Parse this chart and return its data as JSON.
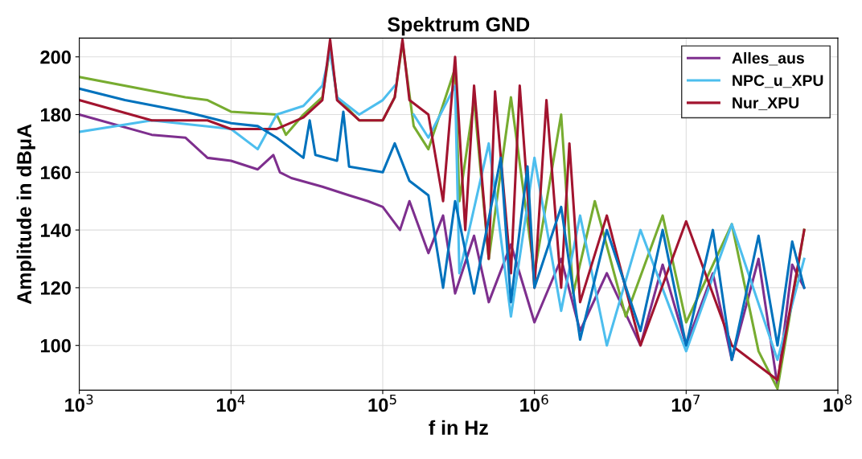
{
  "chart_data": {
    "type": "line",
    "title": "Spektrum GND",
    "xlabel": "f in Hz",
    "ylabel": "Amplitude in dBμA",
    "log": "x",
    "grid": true,
    "legend": "top right",
    "line_style": "solid",
    "marker": "none",
    "xlim": [
      1000,
      100000000
    ],
    "ylim": [
      84.5,
      206.5
    ],
    "xticks": [
      {
        "value": 1000,
        "label": "10$^{3}$"
      },
      {
        "value": 10000,
        "label": "10$^{4}$"
      },
      {
        "value": 100000,
        "label": "10$^{5}$"
      },
      {
        "value": 1000000,
        "label": "10$^{6}$"
      },
      {
        "value": 10000000,
        "label": "10$^{7}$"
      },
      {
        "value": 100000000,
        "label": "10$^{8}$"
      }
    ],
    "yticks": [
      100,
      120,
      140,
      160,
      180,
      200
    ],
    "series": [
      {
        "name": "Alles_aus",
        "color": "#7e2f8e",
        "x": [
          1000,
          3000,
          5000,
          7000,
          10000,
          15000,
          19000,
          21000,
          25000,
          40000,
          60000,
          80000,
          100000,
          130000,
          150000,
          200000,
          250000,
          300000,
          400000,
          500000,
          700000,
          1000000,
          1500000,
          2000000,
          3000000,
          5000000,
          7000000,
          10000000,
          15000000,
          20000000,
          30000000,
          40000000,
          50000000,
          60000000
        ],
        "values": [
          180,
          173,
          172,
          165,
          164,
          161,
          166,
          160,
          158,
          155,
          152,
          150,
          148,
          140,
          150,
          132,
          145,
          118,
          138,
          115,
          135,
          108,
          130,
          105,
          125,
          100,
          128,
          100,
          125,
          95,
          130,
          86,
          128,
          120
        ]
      },
      {
        "color": "#77ac30",
        "x": [
          1000,
          5000,
          7000,
          10000,
          20000,
          23000,
          30000,
          40000,
          45000,
          50000,
          70000,
          100000,
          120000,
          135000,
          160000,
          200000,
          300000,
          320000,
          400000,
          500000,
          700000,
          1000000,
          1500000,
          1800000,
          2500000,
          4000000,
          7000000,
          10000000,
          20000000,
          30000000,
          40000000,
          60000000
        ],
        "values": [
          193,
          186,
          185,
          181,
          180,
          173,
          180,
          186,
          203,
          186,
          178,
          178,
          186,
          205,
          176,
          168,
          196,
          150,
          185,
          130,
          186,
          125,
          180,
          118,
          150,
          110,
          145,
          108,
          142,
          98,
          85,
          140
        ]
      },
      {
        "name": "NPC_u_XPU",
        "color": "#4dbeee",
        "x": [
          1000,
          3000,
          10000,
          15000,
          20000,
          30000,
          40000,
          45000,
          50000,
          70000,
          100000,
          120000,
          135000,
          160000,
          200000,
          300000,
          320000,
          500000,
          700000,
          1000000,
          1500000,
          2000000,
          3000000,
          5000000,
          10000000,
          20000000,
          40000000,
          60000000
        ],
        "values": [
          174,
          178,
          175,
          168,
          180,
          183,
          190,
          202,
          186,
          180,
          185,
          190,
          null,
          180,
          172,
          190,
          125,
          170,
          110,
          165,
          112,
          145,
          100,
          140,
          98,
          142,
          95,
          130
        ]
      },
      {
        "name": "Nur_XPU",
        "color": "#a2142f",
        "x": [
          1000,
          3000,
          7000,
          10000,
          20000,
          30000,
          40000,
          45000,
          50000,
          70000,
          100000,
          120000,
          135000,
          150000,
          200000,
          250000,
          300000,
          350000,
          400000,
          500000,
          550000,
          700000,
          800000,
          1000000,
          1200000,
          1500000,
          1700000,
          2000000,
          3000000,
          5000000,
          10000000,
          20000000,
          40000000,
          60000000
        ],
        "values": [
          185,
          178,
          178,
          175,
          175,
          179,
          185,
          206,
          185,
          178,
          178,
          186,
          206,
          185,
          180,
          150,
          200,
          140,
          190,
          130,
          188,
          125,
          190,
          120,
          185,
          120,
          170,
          115,
          145,
          100,
          143,
          100,
          88,
          140
        ]
      },
      {
        "color": "#0072bd",
        "x": [
          1000,
          2000,
          5000,
          10000,
          15000,
          20000,
          30000,
          33000,
          36000,
          50000,
          55000,
          60000,
          100000,
          120000,
          150000,
          200000,
          250000,
          300000,
          400000,
          600000,
          700000,
          900000,
          1000000,
          1500000,
          2000000,
          3000000,
          5000000,
          7000000,
          10000000,
          15000000,
          20000000,
          30000000,
          40000000,
          50000000,
          60000000
        ],
        "values": [
          189,
          185,
          181,
          177,
          176,
          172,
          165,
          178,
          166,
          164,
          181,
          162,
          160,
          170,
          157,
          152,
          120,
          150,
          118,
          165,
          115,
          162,
          120,
          148,
          102,
          140,
          105,
          140,
          100,
          140,
          95,
          138,
          100,
          136,
          120
        ]
      }
    ]
  }
}
